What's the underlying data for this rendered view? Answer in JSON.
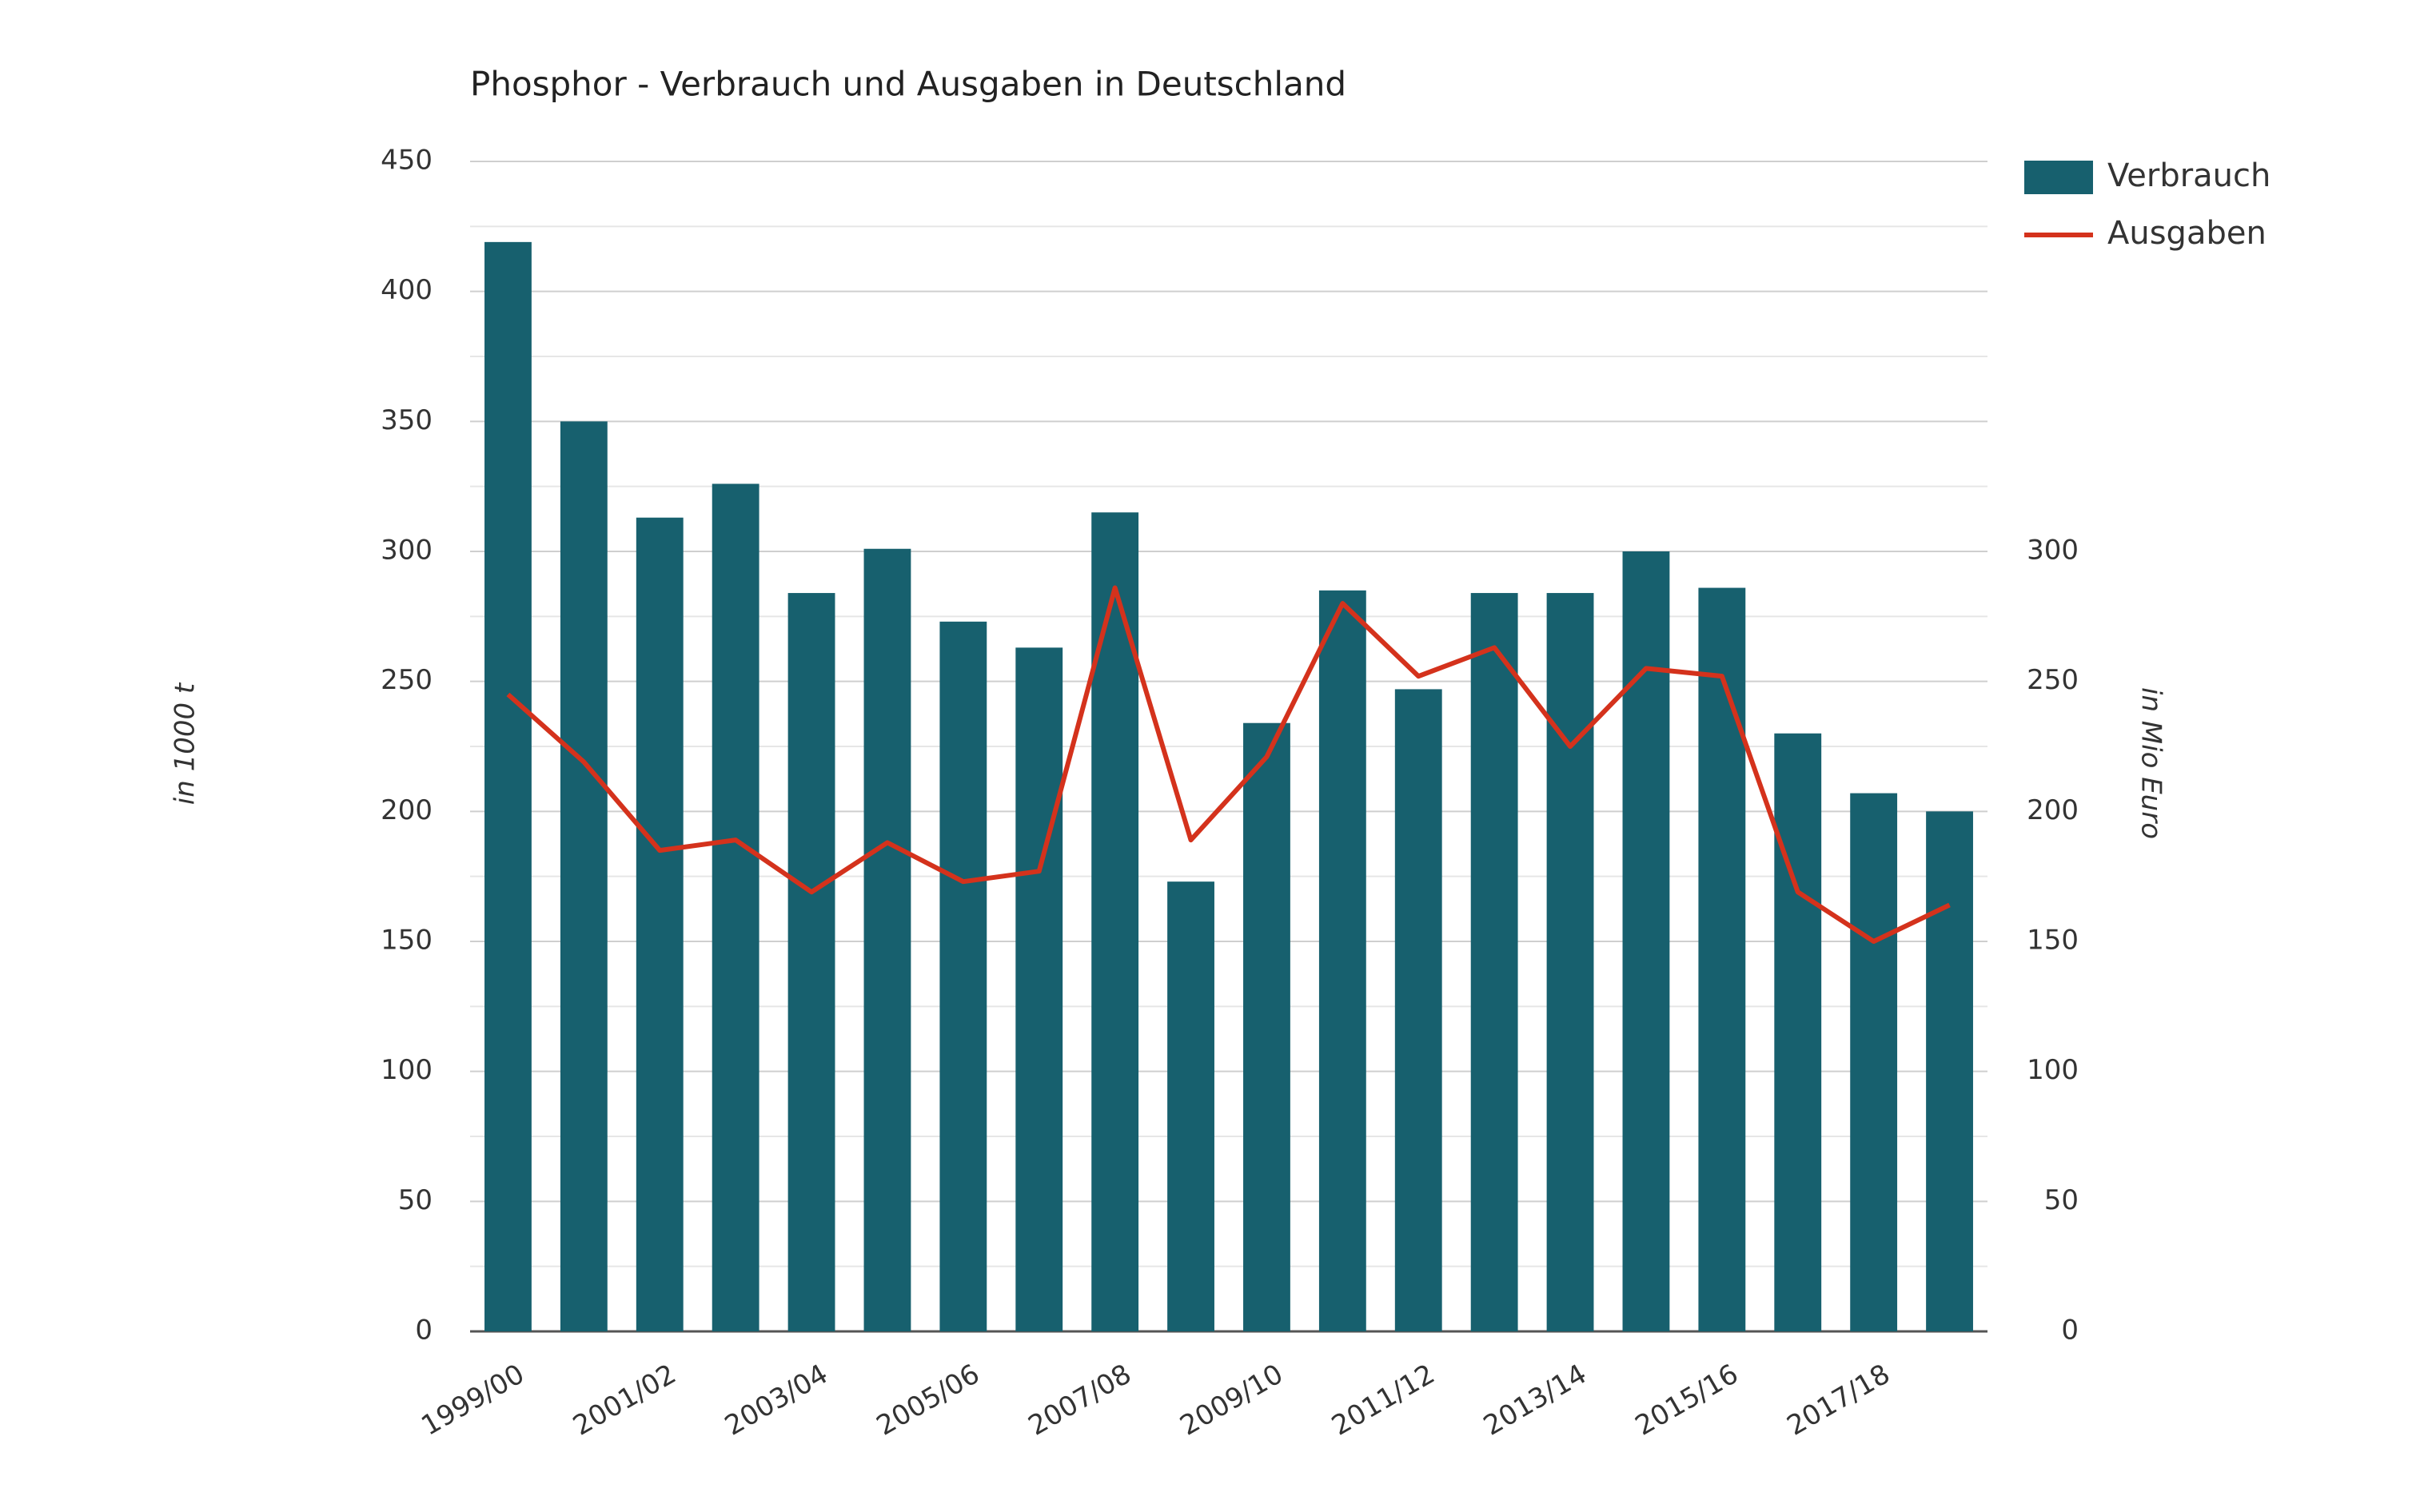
{
  "chart_data": {
    "type": "bar",
    "title": "Phosphor - Verbrauch und Ausgaben in Deutschland",
    "y_label": "in 1000 t",
    "y2_label": "in Mio Euro",
    "categories": [
      "1999/00",
      null,
      "2001/02",
      null,
      "2003/04",
      null,
      "2005/06",
      null,
      "2007/08",
      null,
      "2009/10",
      null,
      "2011/12",
      null,
      "2013/14",
      null,
      "2015/16",
      null,
      "2017/18",
      null
    ],
    "series": [
      {
        "name": "Verbrauch",
        "type": "bar",
        "color": "#17606e",
        "axis": "y",
        "values": [
          419,
          350,
          313,
          326,
          284,
          301,
          273,
          263,
          315,
          173,
          234,
          285,
          247,
          284,
          284,
          300,
          286,
          230,
          207,
          200
        ]
      },
      {
        "name": "Ausgaben",
        "type": "line",
        "color": "#d4321c",
        "axis": "y2",
        "values": [
          245,
          219,
          185,
          189,
          169,
          188,
          173,
          177,
          286,
          189,
          221,
          280,
          252,
          263,
          225,
          255,
          252,
          169,
          150,
          164
        ]
      }
    ],
    "ylim": [
      0,
      450
    ],
    "yticks": [
      0,
      50,
      100,
      150,
      200,
      250,
      300,
      350,
      400,
      450
    ],
    "y2lim": [
      0,
      450
    ],
    "y2ticks": [
      0,
      50,
      100,
      150,
      200,
      250,
      300
    ],
    "grid": true,
    "legend": "top-right"
  }
}
